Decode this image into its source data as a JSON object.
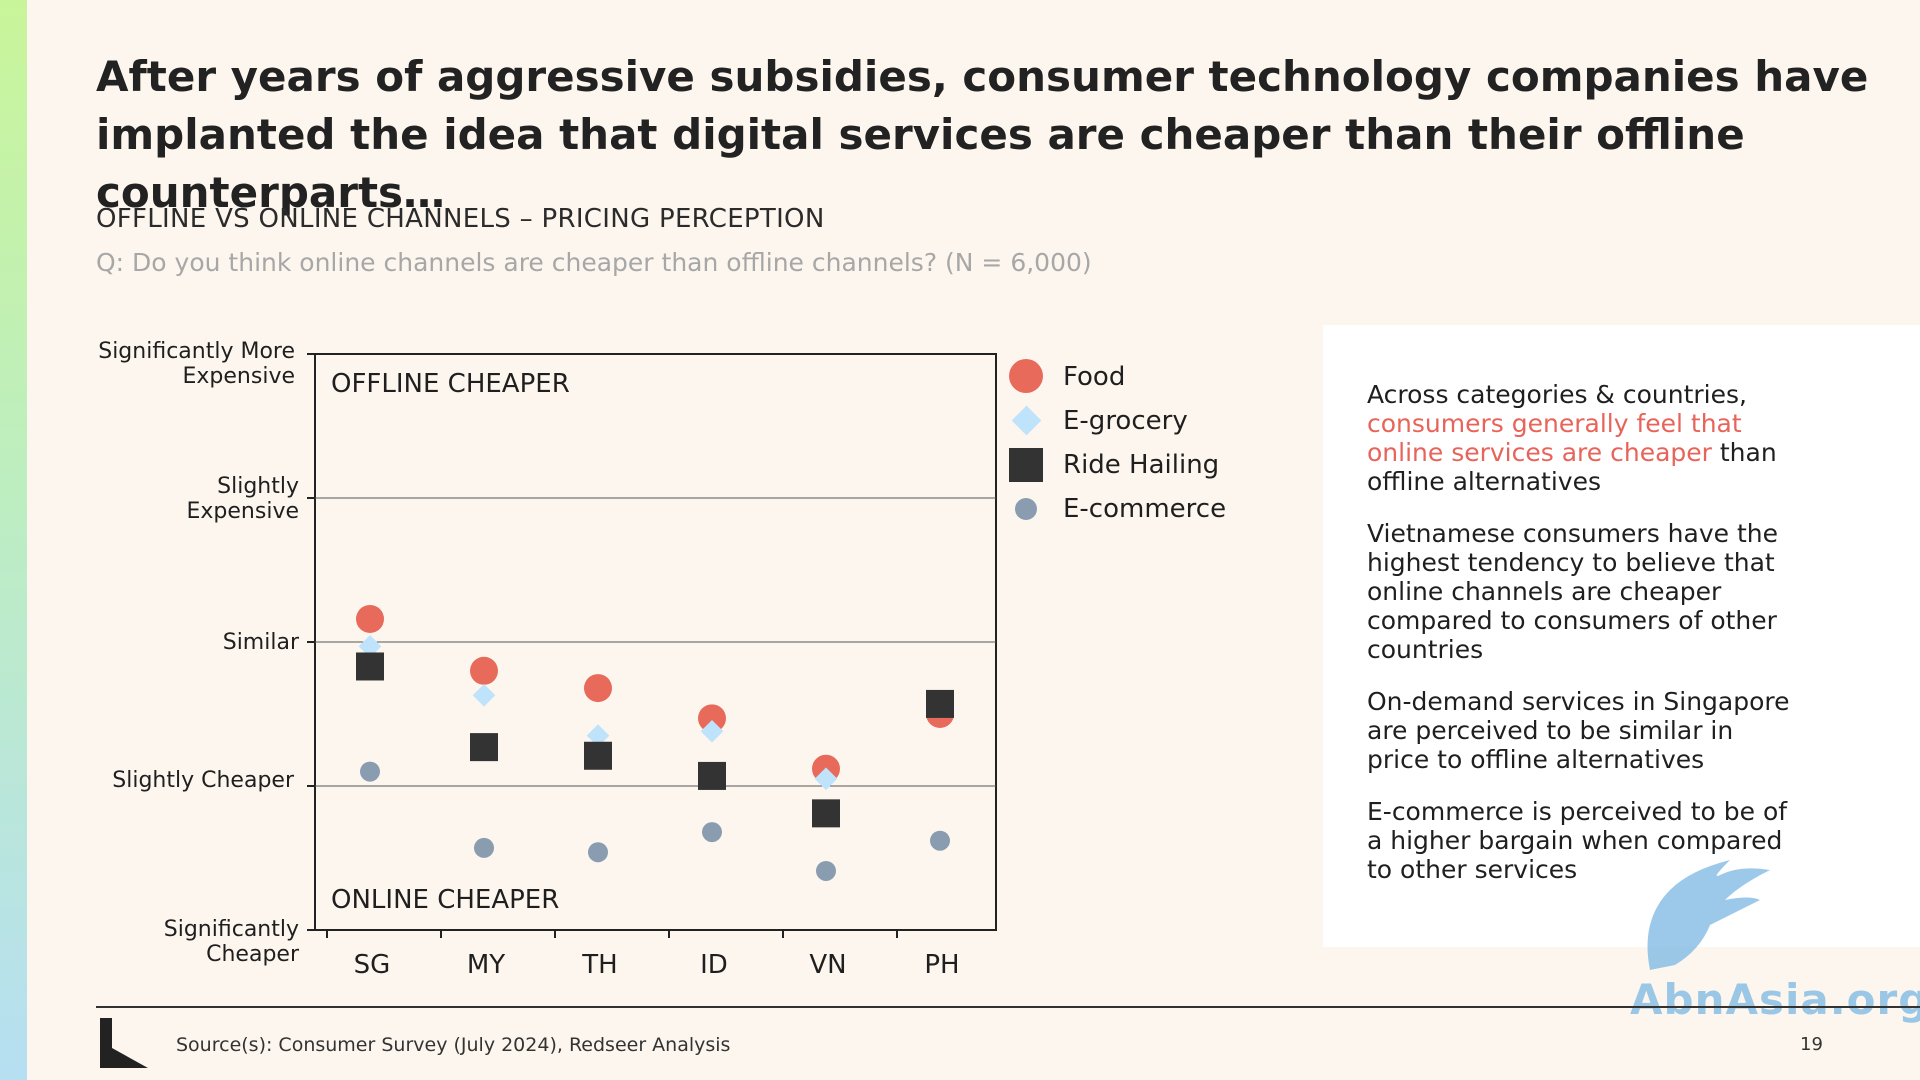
{
  "title": "After years of aggressive subsidies, consumer technology companies have implanted the idea that digital services are cheaper than their offline counterparts…",
  "subtitle": "OFFLINE VS ONLINE CHANNELS – PRICING PERCEPTION",
  "question": "Q: Do you think online channels are cheaper than offline channels? (N = 6,000)",
  "chart_data": {
    "type": "scatter",
    "categories": [
      "SG",
      "MY",
      "TH",
      "ID",
      "VN",
      "PH"
    ],
    "y_levels": [
      "Significantly Cheaper",
      "Slightly Cheaper",
      "Similar",
      "Slightly Expensive",
      "Significantly More Expensive"
    ],
    "ylim": [
      1,
      5
    ],
    "grid": true,
    "legend_position": "right",
    "region_labels": {
      "top": "OFFLINE CHEAPER",
      "bottom": "ONLINE CHEAPER"
    },
    "series": [
      {
        "name": "Food",
        "marker": "circle",
        "color": "#e86a5b",
        "values": [
          3.16,
          2.8,
          2.68,
          2.47,
          2.12,
          2.5
        ]
      },
      {
        "name": "E-grocery",
        "marker": "diamond",
        "color": "#bfe3fb",
        "values": [
          2.97,
          2.63,
          2.35,
          2.38,
          2.05,
          2.55
        ]
      },
      {
        "name": "Ride Hailing",
        "marker": "square",
        "color": "#333333",
        "values": [
          2.83,
          2.27,
          2.21,
          2.07,
          1.81,
          2.57
        ]
      },
      {
        "name": "E-commerce",
        "marker": "dot",
        "color": "#8a9db0",
        "values": [
          2.1,
          1.57,
          1.54,
          1.68,
          1.41,
          1.62
        ]
      }
    ]
  },
  "y_axis_labels": {
    "sig_expensive": "Significantly More Expensive",
    "slight_expensive": "Slightly Expensive",
    "similar": "Similar",
    "slight_cheaper": "Slightly Cheaper",
    "sig_cheaper": "Significantly Cheaper"
  },
  "panel": {
    "p1_a": "Across categories & countries,",
    "p1_highlight": "consumers generally feel that online services are cheaper",
    "p1_b": "than offline alternatives",
    "p2": "Vietnamese consumers have the highest tendency to believe that online channels are cheaper compared to consumers of other countries",
    "p3": "On-demand services in Singapore are perceived to be similar in price to offline alternatives",
    "p4": "E-commerce is perceived to be of a higher bargain when compared to other services"
  },
  "footer": {
    "source": "Source(s): Consumer Survey (July 2024), Redseer Analysis",
    "page": "19"
  },
  "watermark": "AbnAsia.org",
  "colors": {
    "accent_highlight": "#e8645a",
    "background": "#fdf6ee"
  }
}
